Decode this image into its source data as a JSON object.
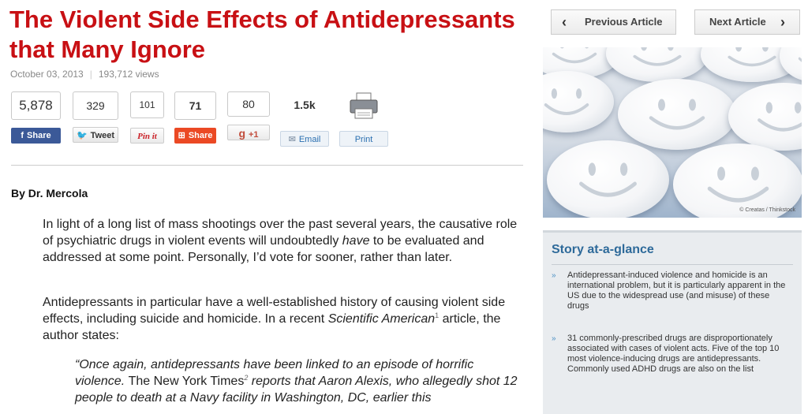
{
  "article": {
    "title": "The Violent Side Effects of Antidepressants that Many Ignore",
    "date": "October 03, 2013",
    "views": "193,712 views",
    "byline": "By Dr. Mercola",
    "paragraph1_a": "In light of a long list of mass shootings over the past several years, the causative role of psychiatric drugs in violent events will undoubtedly ",
    "paragraph1_em": "have",
    "paragraph1_b": " to be evaluated and addressed at some point. Personally, I’d vote for sooner, rather than later.",
    "paragraph2_a": "Antidepressants in particular have a well-established history of causing violent side effects, including suicide and homicide.  In a recent ",
    "paragraph2_em": "Scientific American",
    "paragraph2_sup": "1",
    "paragraph2_b": " article, the author states:",
    "quote_a": "“Once again, antidepressants have been linked to an episode of horrific violence. ",
    "quote_normal": "The New York Times",
    "quote_sup": "2",
    "quote_b": " reports that Aaron Alexis, who allegedly shot 12 people to death at a Navy facility in Washington, DC, earlier this"
  },
  "share": {
    "facebook": {
      "count": "5,878",
      "label": "Share",
      "icon": "f",
      "color": "#3b5998"
    },
    "twitter": {
      "count": "329",
      "label": "Tweet"
    },
    "pinterest": {
      "count": "101",
      "label": "Pin it",
      "color": "#cb2027"
    },
    "stumble": {
      "count": "71",
      "label": "Share",
      "color": "#eb4924"
    },
    "google": {
      "count": "80",
      "label": "+1",
      "icon": "g"
    },
    "email": {
      "count": "1.5k",
      "label": "Email"
    },
    "print": {
      "label": "Print"
    }
  },
  "nav": {
    "prev": "Previous Article",
    "next": "Next Article"
  },
  "hero": {
    "credit": "© Creatas / Thinkstock",
    "pill_faces": [
      "smiley-face",
      "smiley-face",
      "smiley-face",
      "smiley-face",
      "smiley-face",
      "smiley-face",
      "smiley-face",
      "smiley-face",
      "smiley-face"
    ]
  },
  "glance": {
    "title": "Story at-a-glance",
    "items": [
      "Antidepressant-induced violence and homicide is an international problem, but it is particularly apparent in the US due to the widespread use (and misuse) of these drugs",
      "31 commonly-prescribed drugs are disproportionately associated with cases of violent acts. Five of the top 10 most violence-inducing drugs are antidepressants. Commonly used ADHD drugs are also on the list"
    ],
    "bullet": "»"
  },
  "colors": {
    "title": "#c81014",
    "glance_title": "#2e6a9a",
    "accent_blue": "#2a6fb0"
  }
}
